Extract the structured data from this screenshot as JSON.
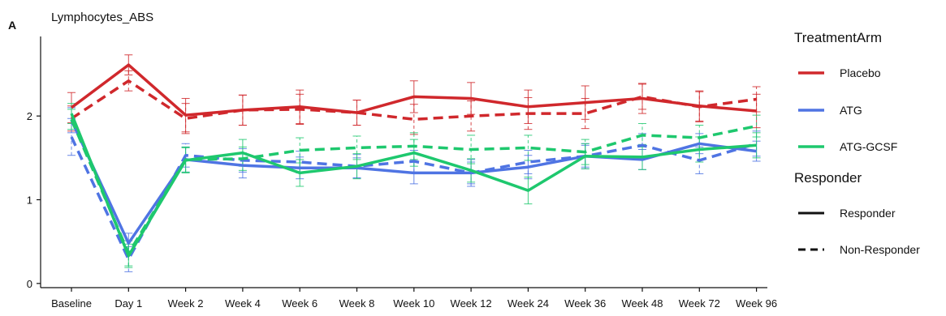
{
  "chart_data": {
    "type": "line",
    "panel_label": "A",
    "title": "Lymphocytes_ABS",
    "xlabel": "",
    "ylabel": "",
    "categories": [
      "Baseline",
      "Day 1",
      "Week 2",
      "Week 4",
      "Week 6",
      "Week 8",
      "Week 10",
      "Week 12",
      "Week 24",
      "Week 36",
      "Week 48",
      "Week 72",
      "Week 96"
    ],
    "ylim": [
      -0.05,
      2.95
    ],
    "yticks": [
      0,
      1,
      2
    ],
    "grid": false,
    "legend_position": "right",
    "legend": {
      "color_title": "TreatmentArm",
      "color_entries": [
        {
          "name": "Placebo",
          "color": "#d0282c"
        },
        {
          "name": "ATG",
          "color": "#4f74e3"
        },
        {
          "name": "ATG-GCSF",
          "color": "#1ec86e"
        }
      ],
      "linetype_title": "Responder",
      "linetype_entries": [
        {
          "name": "Responder",
          "dash": "solid"
        },
        {
          "name": "Non-Responder",
          "dash": "dashed"
        }
      ]
    },
    "series": [
      {
        "arm": "Placebo",
        "responder": "Responder",
        "color": "#d0282c",
        "dash": "solid",
        "values": [
          2.1,
          2.61,
          2.01,
          2.07,
          2.11,
          2.04,
          2.23,
          2.21,
          2.11,
          2.16,
          2.21,
          2.12,
          2.06
        ],
        "err": [
          0.18,
          0.12,
          0.2,
          0.18,
          0.2,
          0.15,
          0.19,
          0.19,
          0.2,
          0.2,
          0.18,
          0.18,
          0.2
        ]
      },
      {
        "arm": "Placebo",
        "responder": "Non-Responder",
        "color": "#d0282c",
        "dash": "dashed",
        "values": [
          1.97,
          2.42,
          1.97,
          2.07,
          2.08,
          2.04,
          1.96,
          2.0,
          2.03,
          2.03,
          2.23,
          2.11,
          2.2
        ],
        "err": [
          0.15,
          0.12,
          0.18,
          0.18,
          0.18,
          0.15,
          0.18,
          0.18,
          0.19,
          0.18,
          0.15,
          0.18,
          0.15
        ]
      },
      {
        "arm": "ATG",
        "responder": "Responder",
        "color": "#4f74e3",
        "dash": "solid",
        "values": [
          1.95,
          0.48,
          1.48,
          1.41,
          1.38,
          1.38,
          1.32,
          1.32,
          1.39,
          1.52,
          1.48,
          1.67,
          1.58
        ],
        "err": [
          0.15,
          0.12,
          0.15,
          0.15,
          0.13,
          0.12,
          0.13,
          0.13,
          0.14,
          0.13,
          0.12,
          0.12,
          0.12
        ]
      },
      {
        "arm": "ATG",
        "responder": "Non-Responder",
        "color": "#4f74e3",
        "dash": "dashed",
        "values": [
          1.75,
          0.29,
          1.53,
          1.47,
          1.45,
          1.4,
          1.46,
          1.32,
          1.45,
          1.52,
          1.65,
          1.47,
          1.67
        ],
        "err": [
          0.22,
          0.15,
          0.14,
          0.14,
          0.13,
          0.14,
          0.13,
          0.16,
          0.14,
          0.15,
          0.14,
          0.16,
          0.15
        ]
      },
      {
        "arm": "ATG-GCSF",
        "responder": "Responder",
        "color": "#1ec86e",
        "dash": "solid",
        "values": [
          2.03,
          0.33,
          1.47,
          1.56,
          1.32,
          1.4,
          1.56,
          1.35,
          1.11,
          1.52,
          1.51,
          1.6,
          1.65
        ],
        "err": [
          0.12,
          0.14,
          0.15,
          0.16,
          0.16,
          0.15,
          0.16,
          0.14,
          0.16,
          0.15,
          0.15,
          0.15,
          0.15
        ]
      },
      {
        "arm": "ATG-GCSF",
        "responder": "Non-Responder",
        "color": "#1ec86e",
        "dash": "dashed",
        "values": [
          1.96,
          0.36,
          1.48,
          1.49,
          1.59,
          1.62,
          1.64,
          1.6,
          1.62,
          1.57,
          1.77,
          1.74,
          1.88
        ],
        "err": [
          0.12,
          0.15,
          0.15,
          0.14,
          0.15,
          0.14,
          0.16,
          0.17,
          0.15,
          0.15,
          0.14,
          0.15,
          0.13
        ]
      }
    ]
  }
}
